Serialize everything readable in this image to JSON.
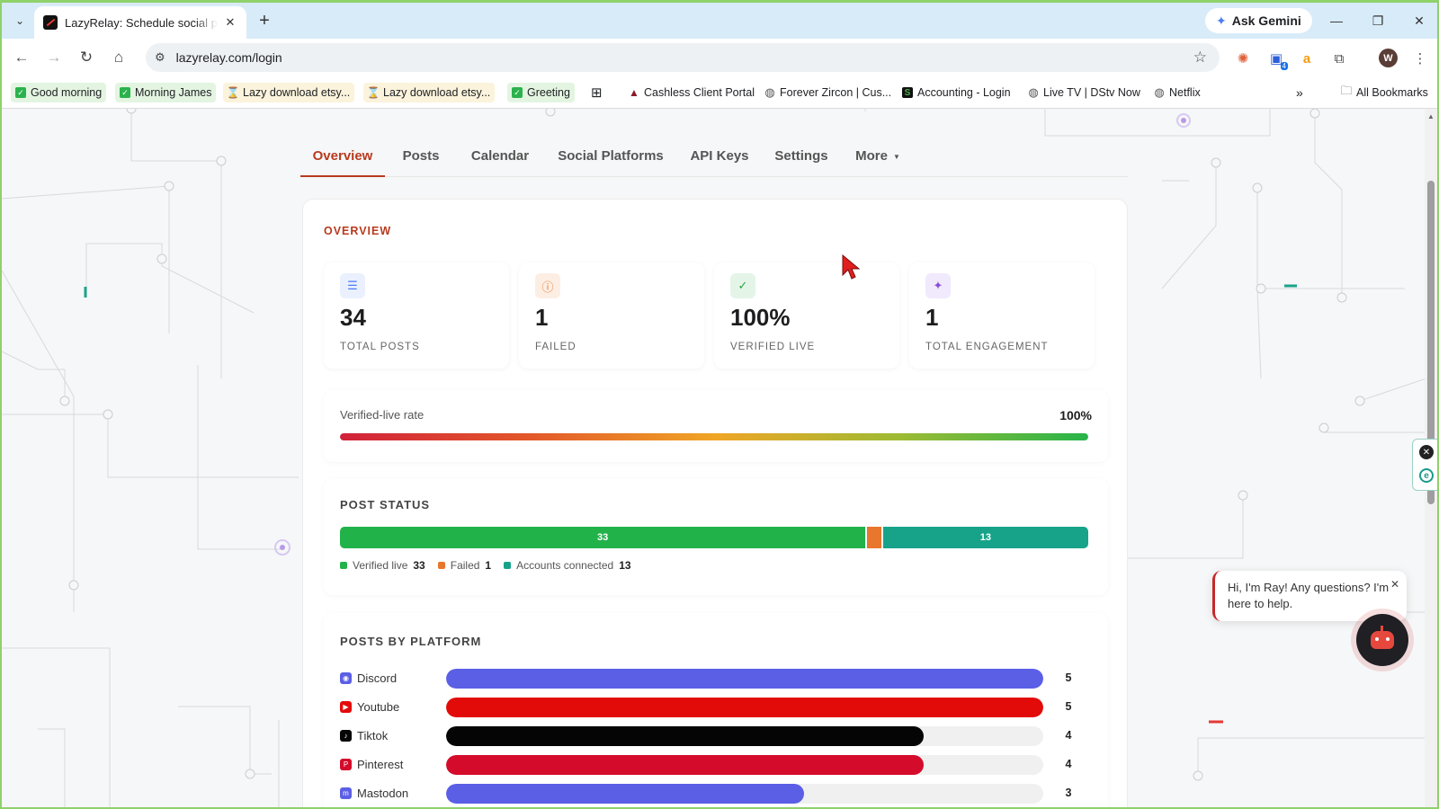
{
  "browser": {
    "tab_title": "LazyRelay: Schedule social posts",
    "url": "lazyrelay.com/login",
    "ask_gemini": "Ask Gemini",
    "extension_badge": "4",
    "profile_initial": "W",
    "bookmarks": [
      {
        "label": "Good morning",
        "icon": "check-icon"
      },
      {
        "label": "Morning James",
        "icon": "check-icon"
      },
      {
        "label": "Lazy download etsy...",
        "icon": "hourglass-icon"
      },
      {
        "label": "Lazy download etsy...",
        "icon": "hourglass-icon"
      },
      {
        "label": "Greeting",
        "icon": "check-icon"
      },
      {
        "label": "Cashless Client Portal",
        "icon": "triangle-icon"
      },
      {
        "label": "Forever Zircon | Cus...",
        "icon": "globe-icon"
      },
      {
        "label": "Accounting - Login",
        "icon": "s-icon"
      },
      {
        "label": "Live TV | DStv Now",
        "icon": "globe-icon"
      },
      {
        "label": "Netflix",
        "icon": "globe-icon"
      }
    ],
    "all_bookmarks": "All Bookmarks"
  },
  "nav": {
    "tabs": [
      "Overview",
      "Posts",
      "Calendar",
      "Social Platforms",
      "API Keys",
      "Settings",
      "More"
    ],
    "active": "Overview"
  },
  "overview": {
    "title": "OVERVIEW",
    "stats": [
      {
        "value": "34",
        "label": "TOTAL POSTS",
        "icon": "document-icon",
        "color": "#4a7cf5",
        "bg": "#eaf0fd"
      },
      {
        "value": "1",
        "label": "FAILED",
        "icon": "alert-icon",
        "color": "#e8762c",
        "bg": "#fdeee4"
      },
      {
        "value": "100%",
        "label": "VERIFIED LIVE",
        "icon": "check-circle-icon",
        "color": "#27a64a",
        "bg": "#e4f5e8"
      },
      {
        "value": "1",
        "label": "TOTAL ENGAGEMENT",
        "icon": "sparkle-icon",
        "color": "#8a4fd8",
        "bg": "#f1e9fc"
      }
    ],
    "rate": {
      "label": "Verified-live rate",
      "value": "100%",
      "fraction": 1.0
    },
    "post_status": {
      "title": "POST STATUS",
      "segments": [
        {
          "name": "Verified live",
          "value": 33,
          "color": "#22b24a"
        },
        {
          "name": "Failed",
          "value": 1,
          "color": "#e8762c"
        },
        {
          "name": "Accounts connected",
          "value": 13,
          "color": "#17a38a"
        }
      ]
    },
    "platforms": {
      "title": "POSTS BY PLATFORM",
      "max": 5,
      "rows": [
        {
          "name": "Discord",
          "value": 5,
          "color": "#5b5fe6",
          "icon": "discord-icon"
        },
        {
          "name": "Youtube",
          "value": 5,
          "color": "#e30a0a",
          "icon": "youtube-icon"
        },
        {
          "name": "Tiktok",
          "value": 4,
          "color": "#050505",
          "icon": "tiktok-icon"
        },
        {
          "name": "Pinterest",
          "value": 4,
          "color": "#d40b2a",
          "icon": "pinterest-icon"
        },
        {
          "name": "Mastodon",
          "value": 3,
          "color": "#5b5fe6",
          "icon": "mastodon-icon"
        }
      ]
    }
  },
  "chat": {
    "message": "Hi, I'm Ray! Any questions? I'm here to help."
  }
}
